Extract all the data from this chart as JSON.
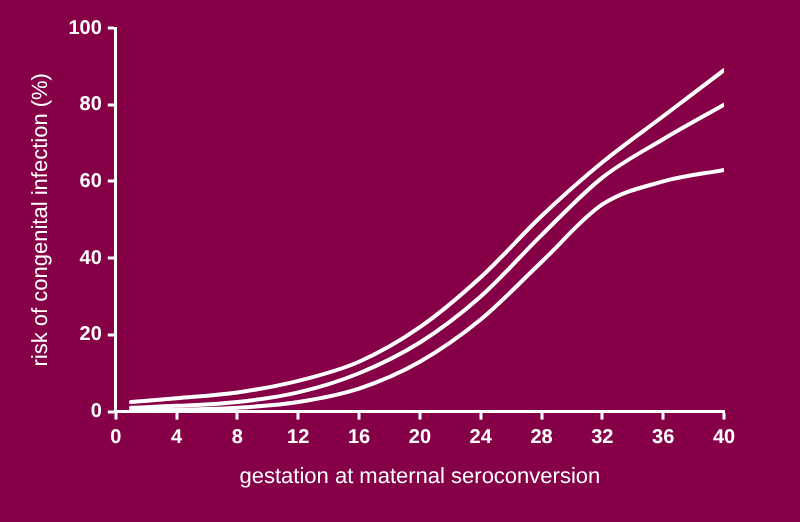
{
  "chart_data": {
    "type": "line",
    "xlabel": "gestation at maternal seroconversion",
    "ylabel": "risk of congenital infection (%)",
    "x": [
      1,
      4,
      8,
      12,
      16,
      20,
      24,
      28,
      32,
      36,
      40
    ],
    "series": [
      {
        "color": "#ffffff",
        "values": [
          2.5,
          3.5,
          5,
          8,
          13,
          22,
          35,
          51,
          65,
          77,
          89
        ]
      },
      {
        "color": "#ffffff",
        "values": [
          1,
          1.5,
          2.5,
          5,
          10,
          18,
          30,
          46,
          61,
          71,
          80
        ]
      },
      {
        "color": "#ffffff",
        "values": [
          0.3,
          0.5,
          1,
          2.5,
          6,
          13,
          24,
          39,
          54,
          60,
          63
        ]
      }
    ],
    "xlim": [
      0,
      40
    ],
    "xticks": [
      0,
      4,
      8,
      12,
      16,
      20,
      24,
      28,
      32,
      36,
      40
    ],
    "ylim": [
      0,
      100
    ],
    "yticks": [
      0,
      20,
      40,
      60,
      80,
      100
    ],
    "grid": false,
    "legend": false,
    "marker": "none",
    "line_style": "solid"
  }
}
